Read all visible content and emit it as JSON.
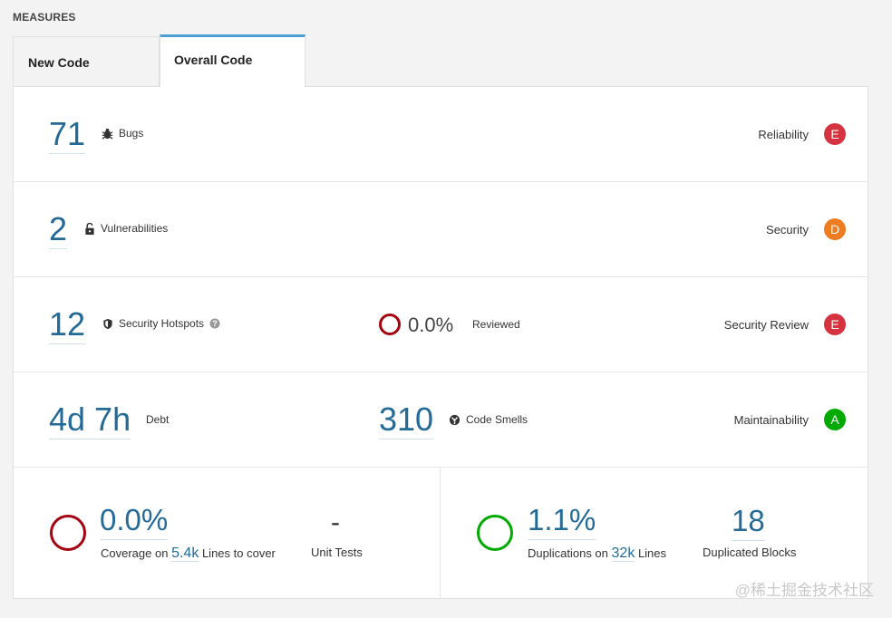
{
  "section_title": "MEASURES",
  "tabs": [
    {
      "label": "New Code",
      "active": false
    },
    {
      "label": "Overall Code",
      "active": true
    }
  ],
  "rows": {
    "bugs": {
      "value": "71",
      "label": "Bugs",
      "rating_label": "Reliability",
      "rating": "E",
      "rating_color": "#d4333f"
    },
    "vulnerabilities": {
      "value": "2",
      "label": "Vulnerabilities",
      "rating_label": "Security",
      "rating": "D",
      "rating_color": "#ed7d20"
    },
    "hotspots": {
      "value": "12",
      "label": "Security Hotspots",
      "reviewed_pct": "0.0%",
      "reviewed_label": "Reviewed",
      "rating_label": "Security Review",
      "rating": "E",
      "rating_color": "#d4333f"
    },
    "maintainability": {
      "debt_value": "4d 7h",
      "debt_label": "Debt",
      "smells_value": "310",
      "smells_label": "Code Smells",
      "rating_label": "Maintainability",
      "rating": "A",
      "rating_color": "#00aa00"
    }
  },
  "coverage": {
    "value": "0.0%",
    "prefix": "Coverage on",
    "lines": "5.4k",
    "suffix": "Lines to cover",
    "unit_tests_value": "-",
    "unit_tests_label": "Unit Tests",
    "ring_color": "#a4030f"
  },
  "duplications": {
    "value": "1.1%",
    "prefix": "Duplications on",
    "lines": "32k",
    "suffix": "Lines",
    "blocks_value": "18",
    "blocks_label": "Duplicated Blocks",
    "ring_color": "#00aa00"
  },
  "watermark": "@稀土掘金技术社区"
}
